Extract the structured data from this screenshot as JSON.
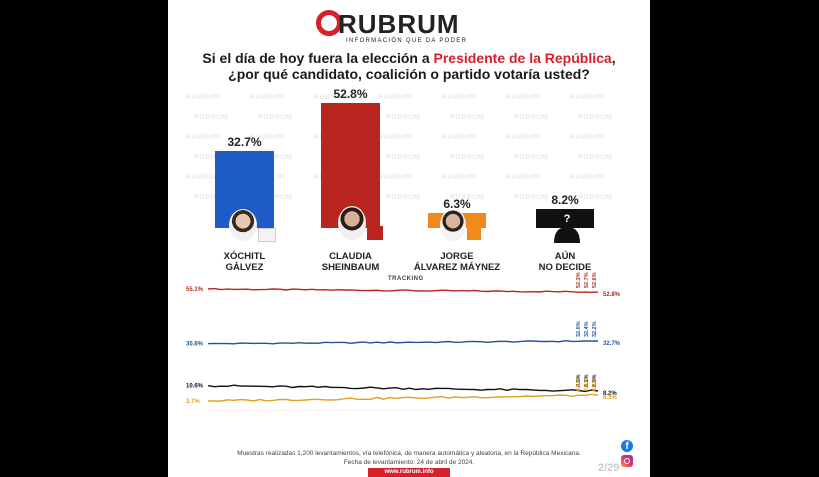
{
  "brand": {
    "name": "RUBRUM",
    "tagline": "INFORMACIÓN QUE DA PODER",
    "url": "www.rubrum.info",
    "watermark": "RUBRUM",
    "red": "#d6202a"
  },
  "question": {
    "line1_prefix": "Si el día de hoy fuera la elección a ",
    "line1_highlight": "Presidente de la República",
    "line1_suffix": ",",
    "line2": "¿por qué candidato, coalición o partido votaría usted?"
  },
  "chart_data": [
    {
      "type": "bar",
      "categories": [
        "XÓCHITL GÁLVEZ",
        "CLAUDIA SHEINBAUM",
        "JORGE ÁLVAREZ MÁYNEZ",
        "AÚN NO DECIDE"
      ],
      "values": [
        32.7,
        52.8,
        6.3,
        8.2
      ],
      "value_labels": [
        "32.7%",
        "52.8%",
        "6.3%",
        "8.2%"
      ],
      "colors": [
        "#1f5bc4",
        "#b8261f",
        "#f08a1c",
        "#111111"
      ],
      "name_lines": [
        [
          "XÓCHITL",
          "GÁLVEZ"
        ],
        [
          "CLAUDIA",
          "SHEINBAUM"
        ],
        [
          "JORGE",
          "ÁLVAREZ MÁYNEZ"
        ],
        [
          "AÚN",
          "NO DECIDE"
        ]
      ],
      "ylim": [
        0,
        55
      ]
    },
    {
      "type": "line",
      "title": "TRACKING",
      "series": [
        {
          "color": "#b8261f",
          "start": 55.1,
          "end": 52.8,
          "start_label": "55.1%",
          "end_label": "52.8%",
          "recent_labels": [
            "52.3%",
            "52.7%",
            "52.6%"
          ]
        },
        {
          "color": "#1f5496",
          "start": 30.6,
          "end": 32.7,
          "start_label": "30.6%",
          "end_label": "32.7%",
          "recent_labels": [
            "32.0%",
            "32.4%",
            "32.2%"
          ]
        },
        {
          "color": "#111111",
          "start": 10.6,
          "end": 8.2,
          "start_label": "10.6%",
          "end_label": "8.2%",
          "recent_labels": [
            "8.6%",
            "8.1%",
            "8.9%"
          ]
        },
        {
          "color": "#e0a020",
          "start": 3.7,
          "end": 6.3,
          "start_label": "3.7%",
          "end_label": "6.3%",
          "recent_labels": [
            "6.5%",
            "6.4%",
            "6.4%"
          ]
        }
      ]
    }
  ],
  "footer": {
    "line1": "Muestras realizadas 1,200 levantamientos, vía telefónica, de manera automática y aleatoria, en la República Mexicana.",
    "line2": "Fecha de levantamiento: 24 de abril de 2024."
  },
  "page_number": "2/29",
  "icons": [
    "facebook-icon",
    "instagram-icon",
    "unknown-person-icon"
  ]
}
